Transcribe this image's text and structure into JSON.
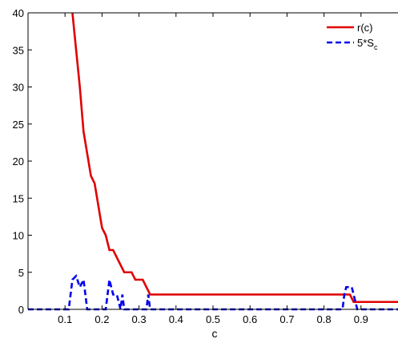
{
  "chart_data": {
    "type": "line",
    "title": "",
    "xlabel": "c",
    "ylabel": "",
    "xlim": [
      0,
      1
    ],
    "ylim": [
      0,
      40
    ],
    "grid": false,
    "legend_position": "top-right",
    "x_ticks": [
      0.1,
      0.2,
      0.3,
      0.4,
      0.5,
      0.6,
      0.7,
      0.8,
      0.9
    ],
    "x_tick_labels": [
      "0.1",
      "0.2",
      "0.3",
      "0.4",
      "0.5",
      "0.6",
      "0.7",
      "0.8",
      "0.9"
    ],
    "y_ticks": [
      0,
      5,
      10,
      15,
      20,
      25,
      30,
      35,
      40
    ],
    "y_tick_labels": [
      "0",
      "5",
      "10",
      "15",
      "20",
      "25",
      "30",
      "35",
      "40"
    ],
    "series": [
      {
        "name": "r(c)",
        "color": "#e00000",
        "style": "solid",
        "x": [
          0.12,
          0.13,
          0.14,
          0.15,
          0.16,
          0.17,
          0.18,
          0.19,
          0.2,
          0.21,
          0.22,
          0.23,
          0.24,
          0.25,
          0.26,
          0.27,
          0.28,
          0.29,
          0.3,
          0.31,
          0.32,
          0.33,
          0.34,
          0.35,
          0.36,
          0.5,
          0.7,
          0.87,
          0.88,
          0.89,
          0.9,
          1.0
        ],
        "y": [
          40,
          35,
          30,
          24,
          21,
          18,
          17,
          14,
          11,
          10,
          8,
          8,
          7,
          6,
          5,
          5,
          5,
          4,
          4,
          4,
          3,
          2,
          2,
          2,
          2,
          2,
          2,
          2,
          1,
          1,
          1,
          1
        ]
      },
      {
        "name_main": "5*S",
        "name_sub": "c",
        "color": "#0000ee",
        "style": "dashed",
        "x": [
          0,
          0.1,
          0.11,
          0.12,
          0.13,
          0.14,
          0.15,
          0.16,
          0.17,
          0.18,
          0.19,
          0.2,
          0.21,
          0.22,
          0.23,
          0.24,
          0.25,
          0.255,
          0.26,
          0.27,
          0.28,
          0.3,
          0.32,
          0.325,
          0.33,
          0.335,
          0.34,
          0.35,
          0.5,
          0.7,
          0.84,
          0.85,
          0.855,
          0.86,
          0.865,
          0.87,
          0.875,
          0.88,
          0.89,
          0.9,
          1.0
        ],
        "y": [
          0,
          0,
          0,
          4,
          4.5,
          3,
          4,
          0,
          0,
          0,
          0,
          0,
          0,
          4,
          2,
          2,
          0,
          2,
          0,
          0,
          0,
          0,
          0,
          2,
          0,
          0,
          0,
          0,
          0,
          0,
          0,
          0,
          2,
          3,
          3,
          3,
          3,
          2,
          0,
          0,
          0
        ]
      }
    ]
  },
  "legend": {
    "r_label": "r(c)",
    "s_label_main": "5*S",
    "s_label_sub": "c"
  }
}
